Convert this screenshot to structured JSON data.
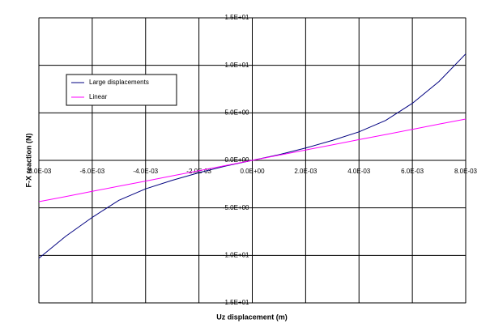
{
  "chart_data": {
    "type": "line",
    "x_label": "Uz displacement (m)",
    "y_label": "F-X reaction (N)",
    "x": [
      -0.008,
      -0.007,
      -0.006,
      -0.005,
      -0.004,
      -0.003,
      -0.002,
      -0.001,
      0,
      0.001,
      0.002,
      0.003,
      0.004,
      0.005,
      0.006,
      0.007,
      0.008
    ],
    "series": [
      {
        "name": "Large displacements",
        "color": "#000080",
        "values": [
          -10.3,
          -8.0,
          -6.0,
          -4.2,
          -3.0,
          -2.1,
          -1.3,
          -0.6,
          0,
          0.6,
          1.3,
          2.1,
          3.0,
          4.2,
          6.0,
          8.3,
          11.2
        ]
      },
      {
        "name": "Linear",
        "color": "#ff00ff",
        "values": [
          -4.35,
          -3.81,
          -3.26,
          -2.72,
          -2.18,
          -1.63,
          -1.09,
          -0.54,
          0,
          0.54,
          1.09,
          1.63,
          2.18,
          2.72,
          3.26,
          3.81,
          4.35
        ]
      }
    ],
    "xlim": [
      -0.008,
      0.008
    ],
    "xticks": [
      {
        "value": -0.008,
        "label": "-8.0E-03"
      },
      {
        "value": -0.006,
        "label": "-6.0E-03"
      },
      {
        "value": -0.004,
        "label": "-4.0E-03"
      },
      {
        "value": -0.002,
        "label": "-2.0E-03"
      },
      {
        "value": 0,
        "label": "0.0E+00"
      },
      {
        "value": 0.002,
        "label": "2.0E-03"
      },
      {
        "value": 0.004,
        "label": "4.0E-03"
      },
      {
        "value": 0.006,
        "label": "6.0E-03"
      },
      {
        "value": 0.008,
        "label": "8.0E-03"
      }
    ],
    "ylim": [
      -15,
      15
    ],
    "yticks": [
      {
        "value": -15,
        "label": "-1.5E+01"
      },
      {
        "value": -10,
        "label": "-1.0E+01"
      },
      {
        "value": -5,
        "label": "-5.0E+00"
      },
      {
        "value": 0,
        "label": "0.0E+00"
      },
      {
        "value": 5,
        "label": "5.0E+00"
      },
      {
        "value": 10,
        "label": "1.0E+01"
      },
      {
        "value": 15,
        "label": "1.5E+01"
      }
    ],
    "grid": true,
    "legend": "upper left"
  }
}
